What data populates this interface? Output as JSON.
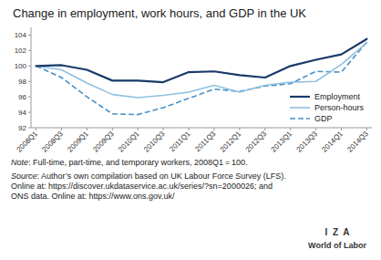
{
  "chart_data": {
    "type": "line",
    "title": "Change in employment, work hours, and GDP in the UK",
    "categories": [
      "2008Q1",
      "2008Q3",
      "2009Q1",
      "2009Q3",
      "2010Q1",
      "2010Q3",
      "2011Q1",
      "2011Q3",
      "2012Q1",
      "2012Q3",
      "2013Q1",
      "2013Q3",
      "2014Q1",
      "2014Q3"
    ],
    "series": [
      {
        "name": "Employment",
        "color": "#1a3a6b",
        "line_style": "solid",
        "values": [
          100.0,
          100.1,
          99.5,
          98.1,
          98.1,
          97.9,
          99.2,
          99.3,
          98.8,
          98.5,
          100.0,
          100.8,
          101.5,
          103.5
        ]
      },
      {
        "name": "Person-hours",
        "color": "#90c0e0",
        "line_style": "solid",
        "values": [
          100.0,
          99.5,
          97.8,
          96.3,
          95.9,
          96.2,
          96.6,
          97.5,
          96.6,
          97.5,
          97.9,
          98.0,
          100.2,
          103.0
        ]
      },
      {
        "name": "GDP",
        "color": "#4a90c4",
        "line_style": "dashed",
        "values": [
          100.0,
          98.5,
          96.0,
          93.8,
          93.7,
          94.6,
          95.8,
          97.0,
          96.7,
          97.4,
          97.7,
          99.3,
          99.2,
          103.1
        ]
      }
    ],
    "ylim": [
      92,
      105
    ],
    "yticks": [
      92,
      94,
      96,
      98,
      100,
      102,
      104
    ],
    "grid": false,
    "legend": "lower right",
    "annotations": [
      "Note",
      ": Full-time, part-time, and temporary workers, 2008Q1 = 100.",
      "Source",
      ": Author’s own compilation based on UK Labour Force Survey (LFS).\nOnline at: https://discover.ukdataservice.ac.uk/series/?sn=2000026; and\nONS data. Online at: https://www.ons.gov.uk/",
      "I  Z  A",
      "World of Labor"
    ]
  }
}
